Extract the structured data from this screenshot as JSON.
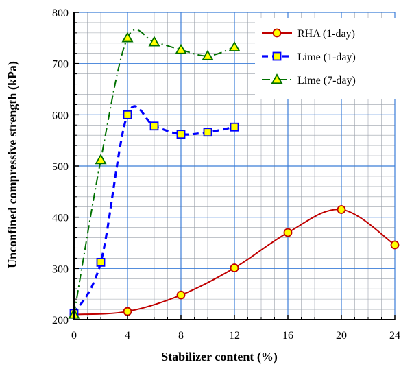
{
  "chart_data": {
    "type": "line",
    "xlabel": "Stabilizer content (%)",
    "ylabel": "Unconfined compressive strength (kPa)",
    "xlim": [
      0,
      24
    ],
    "ylim": [
      200,
      800
    ],
    "x_ticks": [
      0,
      4,
      8,
      12,
      16,
      20,
      24
    ],
    "y_ticks": [
      200,
      300,
      400,
      500,
      600,
      700,
      800
    ],
    "grid": true,
    "legend_position": "top-right",
    "series": [
      {
        "name": "RHA (1-day)",
        "color": "#c00000",
        "line_style": "solid",
        "marker": "circle",
        "marker_fill": "#ffff00",
        "x": [
          0,
          4,
          8,
          12,
          16,
          20,
          24
        ],
        "y": [
          210,
          216,
          248,
          301,
          370,
          415,
          346
        ]
      },
      {
        "name": "Lime (1-day)",
        "color": "#0000ff",
        "line_style": "dashed",
        "marker": "square",
        "marker_fill": "#ffff00",
        "x": [
          0,
          2,
          4,
          6,
          8,
          10,
          12
        ],
        "y": [
          212,
          312,
          600,
          578,
          562,
          566,
          576
        ]
      },
      {
        "name": "Lime (7-day)",
        "color": "#007000",
        "line_style": "dash-dot",
        "marker": "triangle",
        "marker_fill": "#ffff00",
        "x": [
          0,
          2,
          4,
          6,
          8,
          10,
          12
        ],
        "y": [
          210,
          512,
          750,
          742,
          727,
          715,
          732
        ]
      }
    ]
  }
}
